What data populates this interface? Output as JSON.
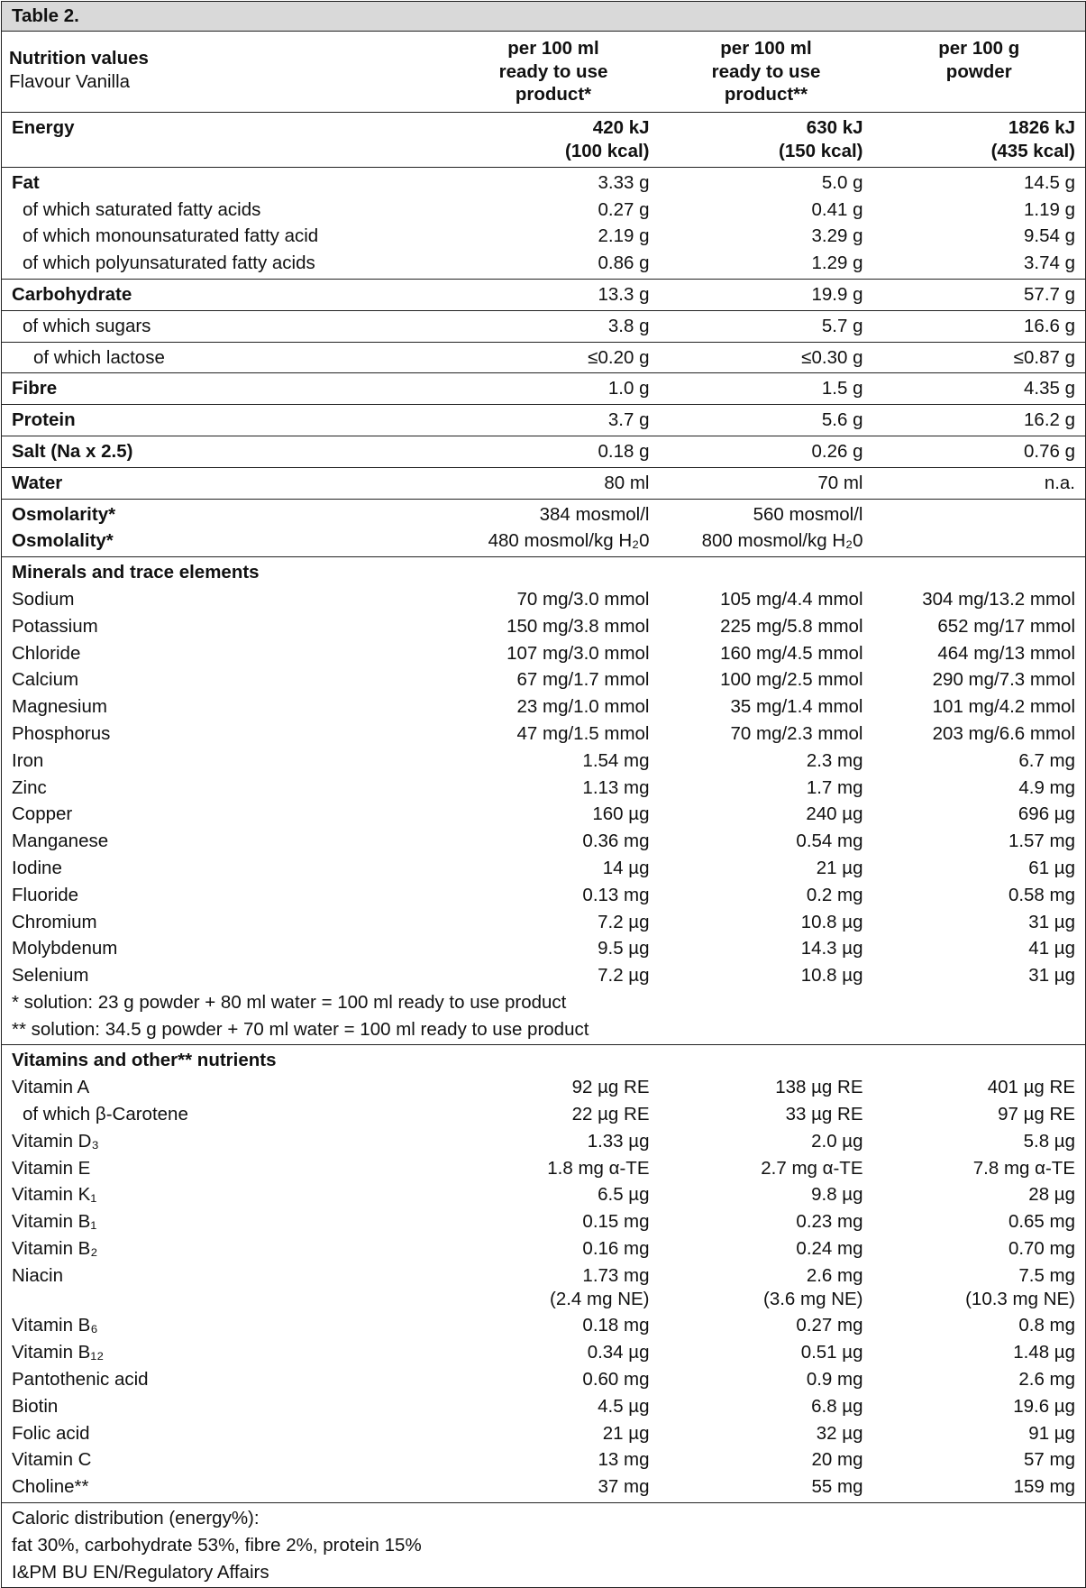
{
  "table": {
    "title": "Table 2.",
    "header": {
      "label": "Nutrition values",
      "sublabel": "Flavour Vanilla",
      "columns": [
        "per 100 ml\nready to use\nproduct*",
        "per 100 ml\nready to use\nproduct**",
        "per 100 g\npowder"
      ]
    },
    "sections": [
      {
        "rows": [
          [
            "Energy",
            "420 kJ\n(100 kcal)",
            "630 kJ\n(150 kcal)",
            "1826 kJ\n(435 kcal)"
          ]
        ]
      },
      {
        "rows": [
          [
            "Fat",
            "3.33 g",
            "5.0 g",
            "14.5 g"
          ],
          [
            "of which saturated fatty acids",
            "0.27 g",
            "0.41 g",
            "1.19 g"
          ],
          [
            "of which monounsaturated fatty acid",
            "2.19 g",
            "3.29 g",
            "9.54 g"
          ],
          [
            "of which polyunsaturated fatty acids",
            "0.86 g",
            "1.29 g",
            "3.74 g"
          ]
        ]
      },
      {
        "rows": [
          [
            "Carbohydrate",
            "13.3 g",
            "19.9 g",
            "57.7 g"
          ]
        ]
      },
      {
        "rows": [
          [
            "of which sugars",
            "3.8 g",
            "5.7 g",
            "16.6 g"
          ]
        ]
      },
      {
        "rows": [
          [
            "of which lactose",
            "≤0.20 g",
            "≤0.30 g",
            "≤0.87 g"
          ]
        ]
      },
      {
        "rows": [
          [
            "Fibre",
            "1.0 g",
            "1.5 g",
            "4.35 g"
          ]
        ]
      },
      {
        "rows": [
          [
            "Protein",
            "3.7 g",
            "5.6 g",
            "16.2 g"
          ]
        ]
      },
      {
        "rows": [
          [
            "Salt (Na x 2.5)",
            "0.18 g",
            "0.26 g",
            "0.76 g"
          ]
        ]
      },
      {
        "rows": [
          [
            "Water",
            "80 ml",
            "70 ml",
            "n.a."
          ]
        ]
      },
      {
        "rows": [
          [
            "Osmolarity*",
            "384 mosmol/l",
            "560 mosmol/l"
          ],
          [
            "Osmolality*",
            "480 mosmol/kg H₂0",
            "800 mosmol/kg H₂0"
          ]
        ]
      },
      {
        "rows": [
          [
            "Minerals and trace elements"
          ],
          [
            "Sodium",
            "70 mg/3.0 mmol",
            "105 mg/4.4 mmol",
            "304 mg/13.2 mmol"
          ],
          [
            "Potassium",
            "150 mg/3.8 mmol",
            "225 mg/5.8 mmol",
            "652 mg/17 mmol"
          ],
          [
            "Chloride",
            "107 mg/3.0 mmol",
            "160 mg/4.5 mmol",
            "464 mg/13 mmol"
          ],
          [
            "Calcium",
            "67 mg/1.7 mmol",
            "100 mg/2.5 mmol",
            "290 mg/7.3 mmol"
          ],
          [
            "Magnesium",
            "23 mg/1.0 mmol",
            "35 mg/1.4 mmol",
            "101 mg/4.2 mmol"
          ],
          [
            "Phosphorus",
            "47 mg/1.5 mmol",
            "70 mg/2.3 mmol",
            "203 mg/6.6 mmol"
          ],
          [
            "Iron",
            "1.54 mg",
            "2.3 mg",
            "6.7 mg"
          ],
          [
            "Zinc",
            "1.13 mg",
            "1.7 mg",
            "4.9 mg"
          ],
          [
            "Copper",
            "160 µg",
            "240 µg",
            "696 µg"
          ],
          [
            "Manganese",
            "0.36 mg",
            "0.54 mg",
            "1.57 mg"
          ],
          [
            "Iodine",
            "14 µg",
            "21 µg",
            "61 µg"
          ],
          [
            "Fluoride",
            "0.13 mg",
            "0.2 mg",
            "0.58 mg"
          ],
          [
            "Chromium",
            "7.2 µg",
            "10.8 µg",
            "31 µg"
          ],
          [
            "Molybdenum",
            "9.5 µg",
            "14.3 µg",
            "41 µg"
          ],
          [
            "Selenium",
            "7.2 µg",
            "10.8 µg",
            "31 µg"
          ],
          [
            "* solution: 23 g powder + 80 ml water = 100 ml ready to use product"
          ],
          [
            "** solution: 34.5 g powder + 70 ml water = 100 ml ready to use product"
          ]
        ]
      },
      {
        "rows": [
          [
            "Vitamins and other** nutrients"
          ],
          [
            "Vitamin A",
            "92 µg RE",
            "138 µg RE",
            "401 µg RE"
          ],
          [
            "of which β-Carotene",
            "22 µg RE",
            "33 µg RE",
            "97 µg RE"
          ],
          [
            "Vitamin D₃",
            "1.33 µg",
            "2.0 µg",
            "5.8 µg"
          ],
          [
            "Vitamin E",
            "1.8 mg α-TE",
            "2.7 mg α-TE",
            "7.8 mg α-TE"
          ],
          [
            "Vitamin K₁",
            "6.5 µg",
            "9.8 µg",
            "28 µg"
          ],
          [
            "Vitamin B₁",
            "0.15 mg",
            "0.23 mg",
            "0.65 mg"
          ],
          [
            "Vitamin B₂",
            "0.16 mg",
            "0.24 mg",
            "0.70 mg"
          ],
          [
            "Niacin",
            "1.73 mg\n(2.4 mg NE)",
            "2.6 mg\n(3.6 mg NE)",
            "7.5 mg\n(10.3 mg NE)"
          ],
          [
            "Vitamin B₆",
            "0.18 mg",
            "0.27 mg",
            "0.8 mg"
          ],
          [
            "Vitamin B₁₂",
            "0.34 µg",
            "0.51 µg",
            "1.48 µg"
          ],
          [
            "Pantothenic acid",
            "0.60 mg",
            "0.9 mg",
            "2.6 mg"
          ],
          [
            "Biotin",
            "4.5 µg",
            "6.8 µg",
            "19.6 µg"
          ],
          [
            "Folic acid",
            "21 µg",
            "32 µg",
            "91 µg"
          ],
          [
            "Vitamin C",
            "13 mg",
            "20 mg",
            "57 mg"
          ],
          [
            "Choline**",
            "37 mg",
            "55 mg",
            "159 mg"
          ]
        ]
      },
      {
        "rows": [
          [
            "Caloric distribution (energy%):"
          ],
          [
            "fat 30%, carbohydrate 53%, fibre 2%, protein 15%"
          ],
          [
            "I&PM BU EN/Regulatory Affairs"
          ]
        ]
      }
    ]
  }
}
